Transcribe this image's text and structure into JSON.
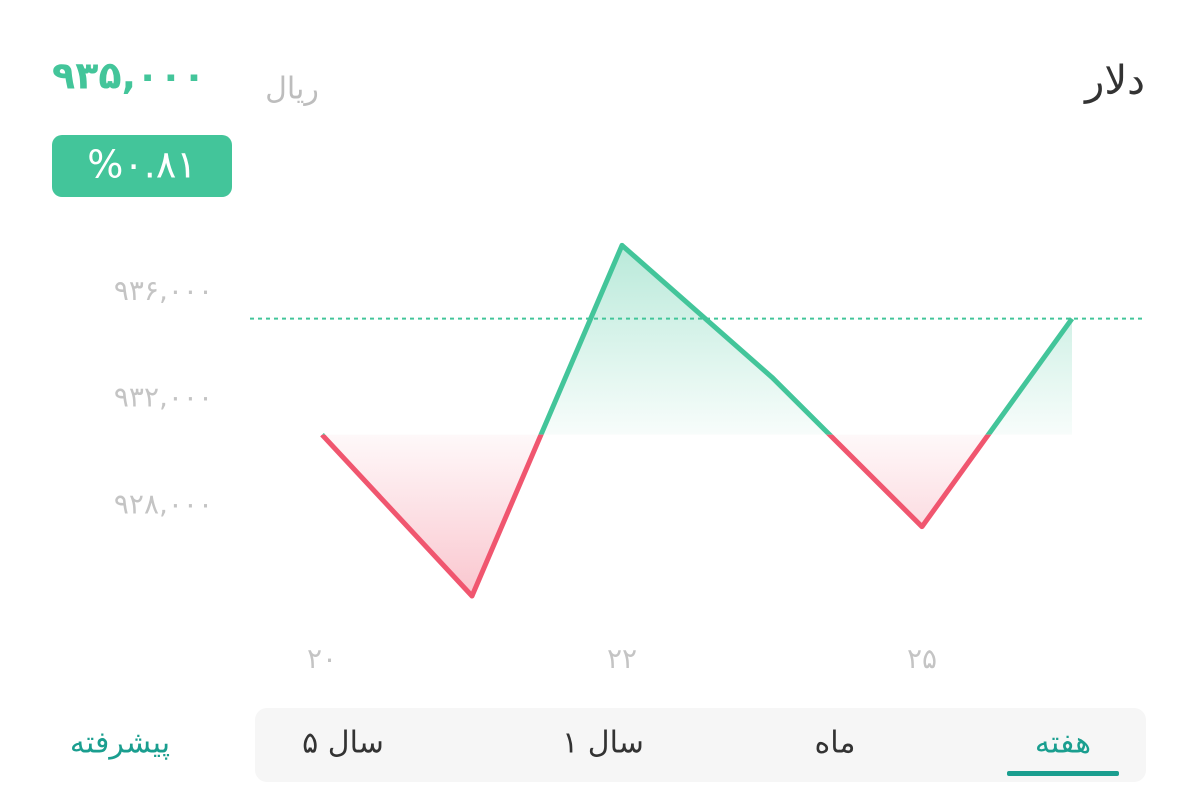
{
  "header": {
    "title": "دلار",
    "price": "۹۳۵,۰۰۰",
    "unit": "ریال",
    "change": "%۰.۸۱"
  },
  "chart_data": {
    "type": "line",
    "categories": [
      "۲۰",
      null,
      "۲۲",
      null,
      "۲۵",
      null
    ],
    "values": [
      930650,
      924600,
      937750,
      932800,
      927200,
      935000
    ],
    "up_color": "#43c59a",
    "down_color": "#f0566f",
    "reference_line": 935000,
    "ylim": [
      923700,
      938700
    ],
    "yticks": [
      {
        "value": 928000,
        "label": "۹۲۸,۰۰۰"
      },
      {
        "value": 932000,
        "label": "۹۳۲,۰۰۰"
      },
      {
        "value": 936000,
        "label": "۹۳۶,۰۰۰"
      }
    ],
    "grid": false
  },
  "tabs": {
    "items": [
      "هفته",
      "ماه",
      "۱ سال",
      "۵ سال"
    ],
    "active": 0,
    "advanced": "پیشرفته"
  }
}
